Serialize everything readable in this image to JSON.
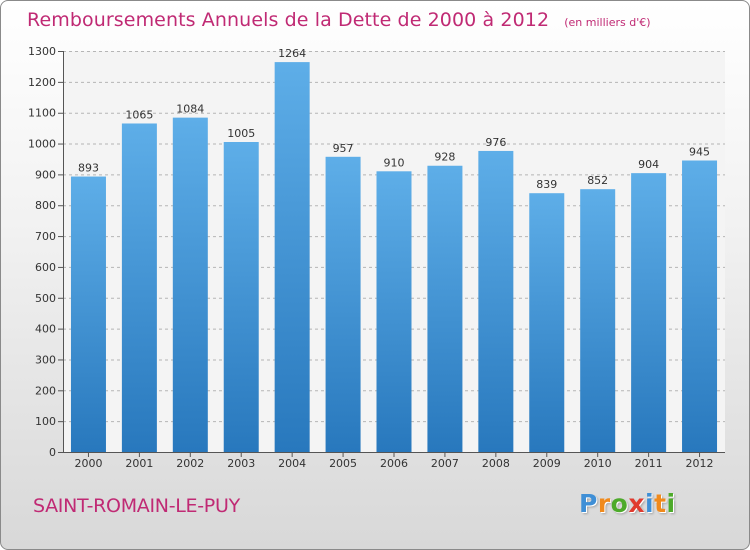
{
  "header": {
    "title": "Remboursements Annuels de la Dette de 2000 à 2012",
    "unit_note": "(en milliers d'€)"
  },
  "footer": {
    "commune": "SAINT-ROMAIN-LE-PUY",
    "brand_letters": [
      {
        "char": "P",
        "color": "#3f8fd6"
      },
      {
        "char": "r",
        "color": "#f08a1c"
      },
      {
        "char": "o",
        "color": "#4daa2a"
      },
      {
        "char": "x",
        "color": "#e03b2f"
      },
      {
        "char": "i",
        "color": "#3f8fd6"
      },
      {
        "char": "t",
        "color": "#f08a1c"
      },
      {
        "char": "i",
        "color": "#4daa2a"
      }
    ]
  },
  "colors": {
    "bar_top": "#5eaee8",
    "bar_bottom": "#2878bd",
    "grid": "#b5b5b5",
    "accent": "#c02a74"
  },
  "chart_data": {
    "type": "bar",
    "title": "Remboursements Annuels de la Dette de 2000 à 2012",
    "xlabel": "",
    "ylabel": "",
    "unit": "en milliers d'€",
    "categories": [
      "2000",
      "2001",
      "2002",
      "2003",
      "2004",
      "2005",
      "2006",
      "2007",
      "2008",
      "2009",
      "2010",
      "2011",
      "2012"
    ],
    "values": [
      893,
      1065,
      1084,
      1005,
      1264,
      957,
      910,
      928,
      976,
      839,
      852,
      904,
      945
    ],
    "ylim": [
      0,
      1300
    ],
    "yticks": [
      0,
      100,
      200,
      300,
      400,
      500,
      600,
      700,
      800,
      900,
      1000,
      1100,
      1200,
      1300
    ],
    "grid": true,
    "grid_style": "dashed",
    "legend": "none"
  }
}
